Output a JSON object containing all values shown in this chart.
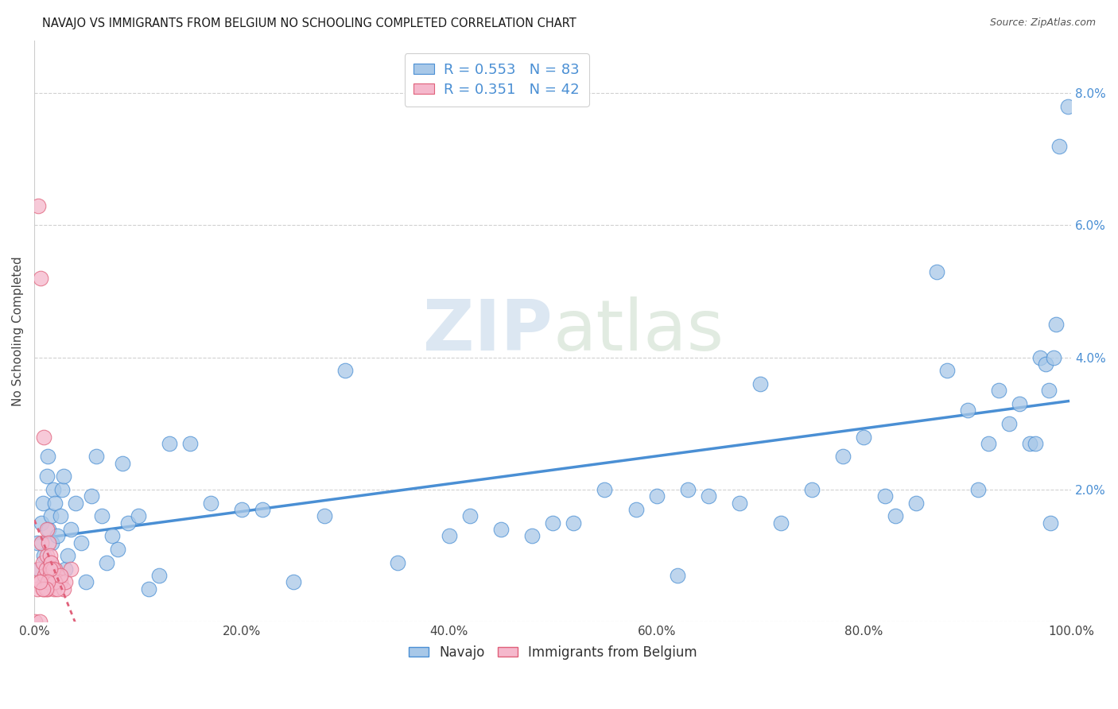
{
  "title": "NAVAJO VS IMMIGRANTS FROM BELGIUM NO SCHOOLING COMPLETED CORRELATION CHART",
  "source": "Source: ZipAtlas.com",
  "ylabel": "No Schooling Completed",
  "xlim": [
    0,
    1.0
  ],
  "ylim": [
    0,
    0.088
  ],
  "xtick_labels": [
    "0.0%",
    "20.0%",
    "40.0%",
    "60.0%",
    "80.0%",
    "100.0%"
  ],
  "xtick_vals": [
    0,
    0.2,
    0.4,
    0.6,
    0.8,
    1.0
  ],
  "ytick_labels": [
    "",
    "2.0%",
    "4.0%",
    "6.0%",
    "8.0%"
  ],
  "ytick_vals": [
    0,
    0.02,
    0.04,
    0.06,
    0.08
  ],
  "navajo_R": "0.553",
  "navajo_N": "83",
  "belgium_R": "0.351",
  "belgium_N": "42",
  "navajo_color": "#a8c8e8",
  "belgium_color": "#f5b8cc",
  "navajo_line_color": "#4a8fd4",
  "belgium_line_color": "#e0607a",
  "tick_color": "#4a8fd4",
  "navajo_x": [
    0.003,
    0.005,
    0.007,
    0.008,
    0.009,
    0.01,
    0.012,
    0.013,
    0.014,
    0.015,
    0.016,
    0.017,
    0.018,
    0.02,
    0.022,
    0.025,
    0.027,
    0.028,
    0.03,
    0.032,
    0.035,
    0.04,
    0.045,
    0.05,
    0.055,
    0.06,
    0.065,
    0.07,
    0.075,
    0.08,
    0.085,
    0.09,
    0.1,
    0.11,
    0.12,
    0.13,
    0.15,
    0.17,
    0.2,
    0.22,
    0.25,
    0.28,
    0.3,
    0.35,
    0.4,
    0.42,
    0.45,
    0.48,
    0.5,
    0.52,
    0.55,
    0.58,
    0.6,
    0.62,
    0.63,
    0.65,
    0.68,
    0.7,
    0.72,
    0.75,
    0.78,
    0.8,
    0.82,
    0.83,
    0.85,
    0.87,
    0.88,
    0.9,
    0.91,
    0.92,
    0.93,
    0.94,
    0.95,
    0.96,
    0.965,
    0.97,
    0.975,
    0.978,
    0.98,
    0.983,
    0.985,
    0.988,
    0.997
  ],
  "navajo_y": [
    0.012,
    0.008,
    0.015,
    0.018,
    0.01,
    0.006,
    0.022,
    0.025,
    0.014,
    0.009,
    0.016,
    0.012,
    0.02,
    0.018,
    0.013,
    0.016,
    0.02,
    0.022,
    0.008,
    0.01,
    0.014,
    0.018,
    0.012,
    0.006,
    0.019,
    0.025,
    0.016,
    0.009,
    0.013,
    0.011,
    0.024,
    0.015,
    0.016,
    0.005,
    0.007,
    0.027,
    0.027,
    0.018,
    0.017,
    0.017,
    0.006,
    0.016,
    0.038,
    0.009,
    0.013,
    0.016,
    0.014,
    0.013,
    0.015,
    0.015,
    0.02,
    0.017,
    0.019,
    0.007,
    0.02,
    0.019,
    0.018,
    0.036,
    0.015,
    0.02,
    0.025,
    0.028,
    0.019,
    0.016,
    0.018,
    0.053,
    0.038,
    0.032,
    0.02,
    0.027,
    0.035,
    0.03,
    0.033,
    0.027,
    0.027,
    0.04,
    0.039,
    0.035,
    0.015,
    0.04,
    0.045,
    0.072,
    0.078
  ],
  "belgium_x": [
    0.001,
    0.003,
    0.004,
    0.005,
    0.006,
    0.007,
    0.008,
    0.009,
    0.01,
    0.011,
    0.012,
    0.013,
    0.014,
    0.015,
    0.016,
    0.017,
    0.018,
    0.019,
    0.02,
    0.022,
    0.025,
    0.028,
    0.03,
    0.035,
    0.004,
    0.006,
    0.009,
    0.012,
    0.014,
    0.015,
    0.016,
    0.017,
    0.018,
    0.019,
    0.02,
    0.022,
    0.025,
    0.015,
    0.013,
    0.011,
    0.008,
    0.005
  ],
  "belgium_y": [
    0.0,
    0.005,
    0.008,
    0.0,
    0.006,
    0.012,
    0.009,
    0.005,
    0.007,
    0.008,
    0.01,
    0.005,
    0.006,
    0.007,
    0.009,
    0.008,
    0.006,
    0.005,
    0.008,
    0.007,
    0.006,
    0.005,
    0.006,
    0.008,
    0.063,
    0.052,
    0.028,
    0.014,
    0.012,
    0.01,
    0.009,
    0.006,
    0.008,
    0.006,
    0.006,
    0.005,
    0.007,
    0.008,
    0.006,
    0.005,
    0.005,
    0.006
  ]
}
